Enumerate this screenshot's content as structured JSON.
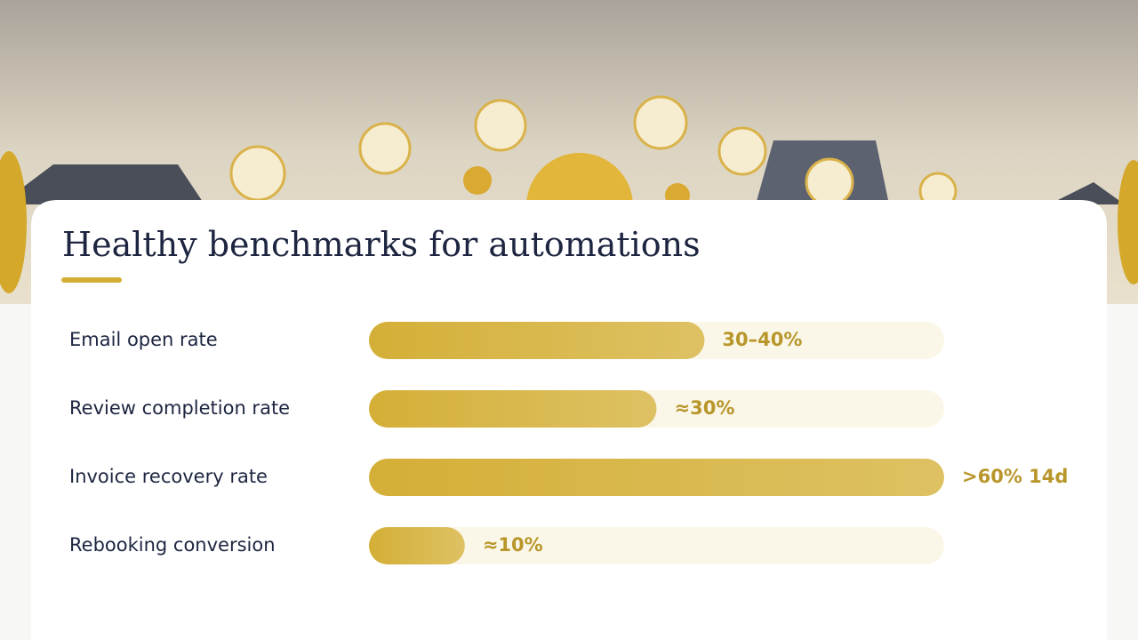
{
  "chart_data": {
    "type": "bar",
    "title": "Healthy benchmarks for automations",
    "categories": [
      "Email open rate",
      "Review completion rate",
      "Invoice recovery rate",
      "Rebooking conversion"
    ],
    "values": [
      35,
      30,
      60,
      10
    ],
    "value_labels": [
      "30–40%",
      "≈30%",
      ">60% 14d",
      "≈10%"
    ],
    "color": "#d4af37",
    "xlim": [
      0,
      60
    ]
  }
}
